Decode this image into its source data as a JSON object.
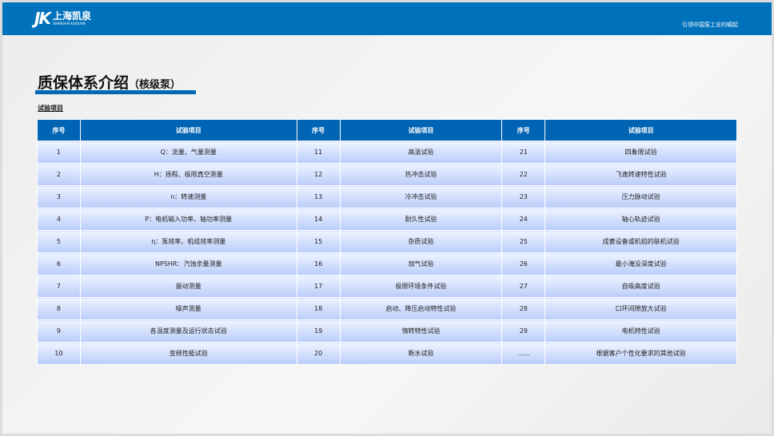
{
  "header": {
    "logo_mark": "JK",
    "logo_cn": "上海凯泉",
    "logo_en": "SHANGHAI KAIQUAN",
    "tagline": "引领中国泵工业的崛起"
  },
  "title": "质保体系介绍",
  "subtitle": "（核级泵）",
  "section": "试验项目",
  "table": {
    "headers": [
      "序号",
      "试验项目",
      "序号",
      "试验项目",
      "序号",
      "试验项目"
    ],
    "rows": [
      [
        "1",
        "Q：流量、气量测量",
        "11",
        "高温试验",
        "21",
        "四象限试验"
      ],
      [
        "2",
        "H：扬程、极限真空测量",
        "12",
        "热冲击试验",
        "22",
        "飞逸转速特性试验"
      ],
      [
        "3",
        "n：转速测量",
        "13",
        "冷冲击试验",
        "23",
        "压力脉动试验"
      ],
      [
        "4",
        "P：电机输入功率、轴功率测量",
        "14",
        "耐久性试验",
        "24",
        "轴心轨迹试验"
      ],
      [
        "5",
        "η：泵效率、机组效率测量",
        "15",
        "杂质试验",
        "25",
        "成套设备或机组的联机试验"
      ],
      [
        "6",
        "NPSHR：汽蚀余量测量",
        "16",
        "加气试验",
        "26",
        "最小淹没深度试验"
      ],
      [
        "7",
        "振动测量",
        "17",
        "极限环境条件试验",
        "27",
        "自吸高度试验"
      ],
      [
        "8",
        "噪声测量",
        "18",
        "启动、降压启动特性试验",
        "28",
        "口环间隙放大试验"
      ],
      [
        "9",
        "各温度测量及运行状态试验",
        "19",
        "惰转特性试验",
        "29",
        "电机特性试验"
      ],
      [
        "10",
        "变频性能试验",
        "20",
        "断水试验",
        "……",
        "根据客户个性化要求的其他试验"
      ]
    ]
  },
  "colors": {
    "brand": "#0072bc",
    "header": "#0064b4"
  }
}
